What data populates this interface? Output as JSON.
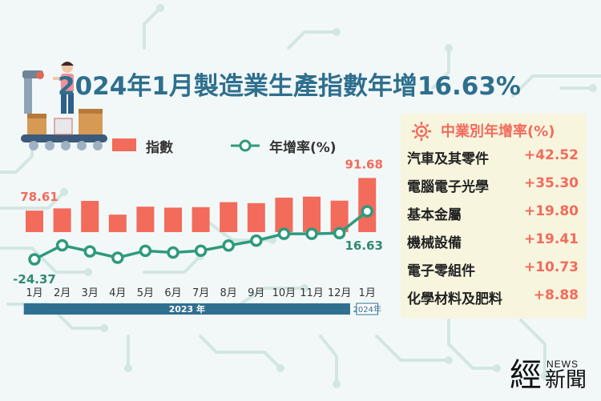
{
  "title": "2024年1月製造業生產指數年增16.63%",
  "legend": {
    "bar_label": "指數",
    "line_label": "年增率(%)"
  },
  "colors": {
    "bar": "#f26b5b",
    "line": "#2e9a7c",
    "title": "#2e6f8e",
    "bar_value": "#f26b5b",
    "line_value": "#2e8a6e"
  },
  "chart_data": {
    "type": "bar",
    "categories": [
      "1月",
      "2月",
      "3月",
      "4月",
      "5月",
      "6月",
      "7月",
      "8月",
      "9月",
      "10月",
      "11月",
      "12月",
      "1月"
    ],
    "series": [
      {
        "name": "指數",
        "type": "bar",
        "values": [
          78.61,
          79.5,
          82.5,
          77.0,
          80.2,
          79.8,
          80.0,
          82.0,
          81.6,
          83.8,
          84.2,
          82.6,
          91.68
        ]
      },
      {
        "name": "年增率(%)",
        "type": "line",
        "values": [
          -24.37,
          -12.4,
          -17.6,
          -23.0,
          -17.1,
          -18.6,
          -17.0,
          -12.6,
          -8.4,
          -2.6,
          -2.6,
          -2.0,
          16.63
        ]
      }
    ],
    "data_labels": [
      {
        "series": "指數",
        "index": 0,
        "text": "78.61"
      },
      {
        "series": "指數",
        "index": 12,
        "text": "91.68"
      },
      {
        "series": "年增率(%)",
        "index": 0,
        "text": "-24.37"
      },
      {
        "series": "年增率(%)",
        "index": 12,
        "text": "16.63"
      }
    ],
    "year_groups": [
      {
        "label": "2023 年",
        "start": 0,
        "end": 11
      },
      {
        "label": "2024年",
        "start": 12,
        "end": 12
      }
    ],
    "legend_position": "top",
    "grid": false
  },
  "panel": {
    "title": "中業別年增率(%)",
    "icon": "gear-wrench-icon",
    "items": [
      {
        "name": "汽車及其零件",
        "value": "+42.52"
      },
      {
        "name": "電腦電子光學",
        "value": "+35.30"
      },
      {
        "name": "基本金屬",
        "value": "+19.80"
      },
      {
        "name": "機械設備",
        "value": "+19.41"
      },
      {
        "name": "電子零組件",
        "value": "+10.73"
      },
      {
        "name": "化學材料及肥料",
        "value": "+8.88"
      }
    ]
  },
  "brand": {
    "big": "經",
    "news": "NEWS",
    "small": "新聞"
  }
}
